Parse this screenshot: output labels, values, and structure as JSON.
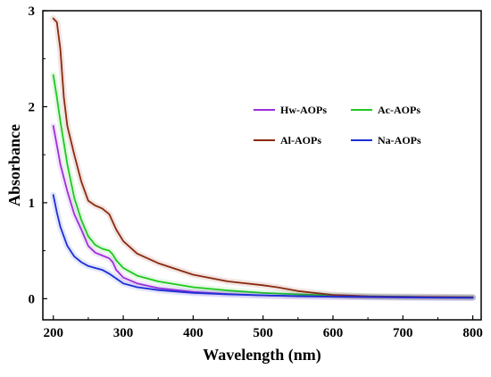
{
  "chart_data": {
    "type": "line",
    "xlabel": "Wavelength (nm)",
    "ylabel": "Absorbance",
    "xlim": [
      185,
      812
    ],
    "ylim": [
      -0.22,
      3.0
    ],
    "xticks": [
      200,
      300,
      400,
      500,
      600,
      700,
      800
    ],
    "yticks": [
      0,
      1,
      2,
      3
    ],
    "grid": false,
    "legend_position": "top-right",
    "series": [
      {
        "name": "Hw-AOPs",
        "color": "#9b30d9",
        "x": [
          200,
          205,
          210,
          220,
          230,
          240,
          250,
          260,
          270,
          280,
          285,
          290,
          300,
          320,
          350,
          400,
          450,
          500,
          550,
          600,
          650,
          700,
          750,
          800
        ],
        "y": [
          1.8,
          1.6,
          1.4,
          1.12,
          0.88,
          0.72,
          0.55,
          0.48,
          0.45,
          0.42,
          0.38,
          0.3,
          0.22,
          0.16,
          0.11,
          0.07,
          0.05,
          0.035,
          0.025,
          0.02,
          0.015,
          0.012,
          0.01,
          0.01
        ]
      },
      {
        "name": "Ac-AOPs",
        "color": "#1fc81f",
        "x": [
          200,
          205,
          210,
          220,
          230,
          240,
          250,
          260,
          270,
          280,
          285,
          290,
          300,
          320,
          350,
          400,
          450,
          500,
          550,
          600,
          650,
          700,
          750,
          800
        ],
        "y": [
          2.33,
          2.1,
          1.85,
          1.4,
          1.05,
          0.82,
          0.65,
          0.56,
          0.52,
          0.5,
          0.46,
          0.4,
          0.32,
          0.24,
          0.18,
          0.12,
          0.085,
          0.06,
          0.045,
          0.035,
          0.025,
          0.02,
          0.016,
          0.015
        ]
      },
      {
        "name": "Al-AOPs",
        "color": "#8b2a10",
        "x": [
          200,
          205,
          210,
          215,
          220,
          230,
          240,
          250,
          260,
          270,
          280,
          285,
          290,
          300,
          320,
          350,
          400,
          450,
          500,
          520,
          550,
          600,
          650,
          700,
          750,
          800
        ],
        "y": [
          2.92,
          2.88,
          2.6,
          2.1,
          1.8,
          1.5,
          1.22,
          1.02,
          0.97,
          0.94,
          0.88,
          0.8,
          0.72,
          0.6,
          0.47,
          0.37,
          0.25,
          0.18,
          0.14,
          0.12,
          0.08,
          0.04,
          0.025,
          0.02,
          0.018,
          0.015
        ]
      },
      {
        "name": "Na-AOPs",
        "color": "#1c2fd6",
        "x": [
          200,
          205,
          210,
          220,
          230,
          240,
          250,
          260,
          270,
          280,
          290,
          300,
          320,
          350,
          400,
          450,
          500,
          550,
          600,
          650,
          700,
          750,
          800
        ],
        "y": [
          1.08,
          0.9,
          0.75,
          0.55,
          0.44,
          0.38,
          0.34,
          0.32,
          0.3,
          0.26,
          0.21,
          0.16,
          0.12,
          0.09,
          0.06,
          0.045,
          0.035,
          0.028,
          0.022,
          0.018,
          0.015,
          0.012,
          0.01
        ]
      }
    ]
  }
}
